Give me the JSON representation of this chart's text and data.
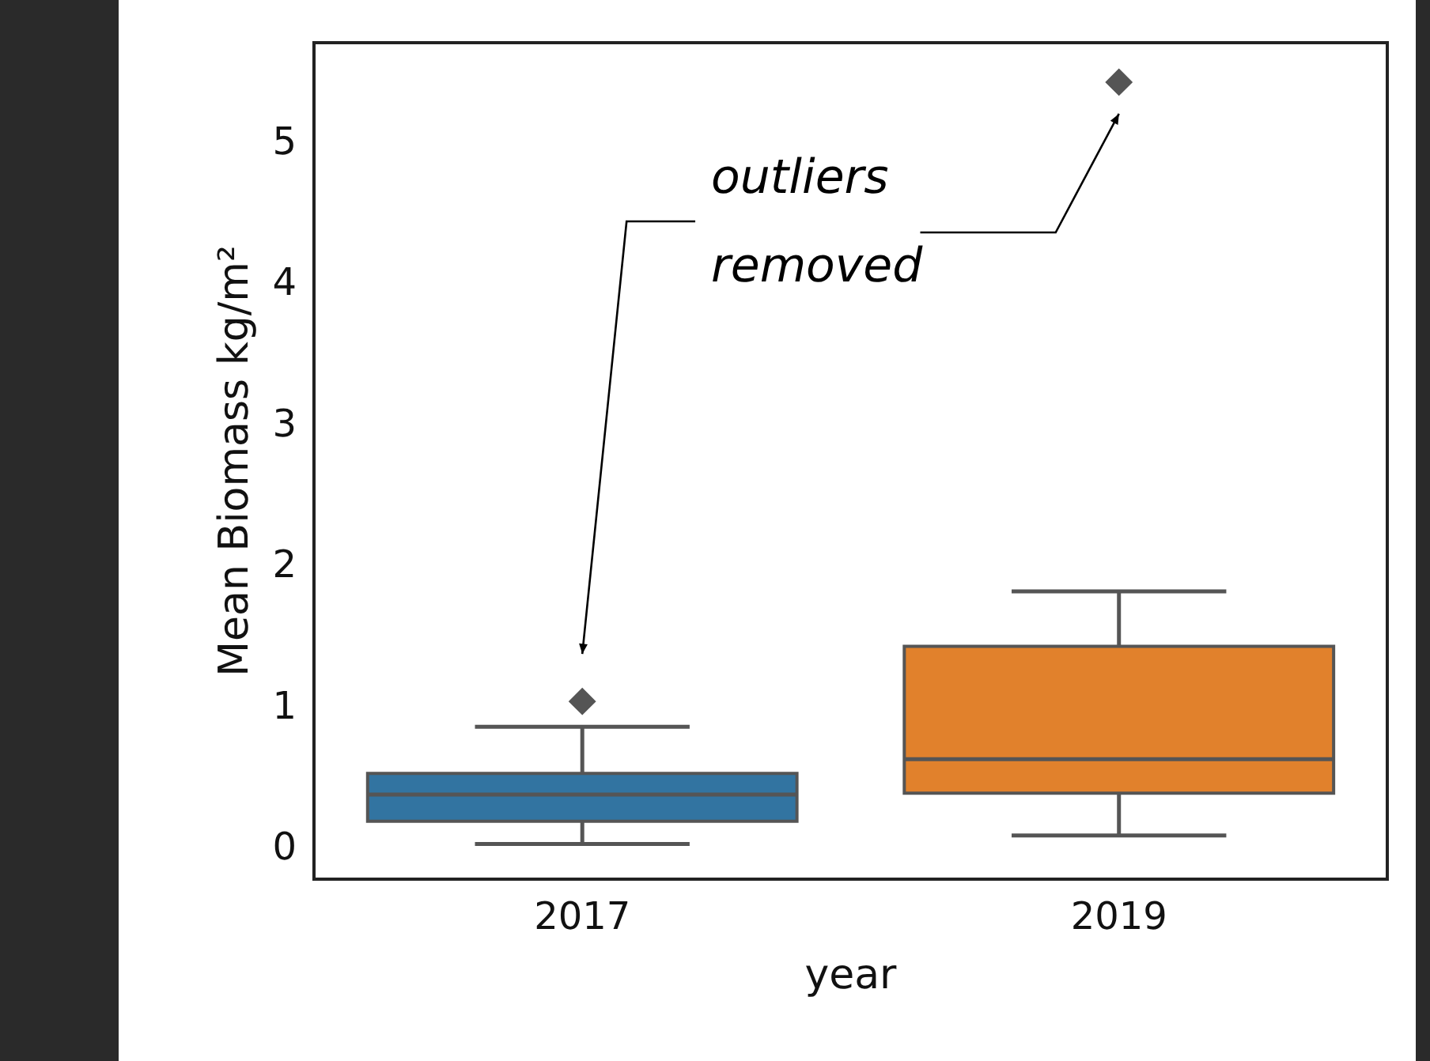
{
  "chart_data": {
    "type": "box",
    "xlabel": "year",
    "ylabel": "Mean Biomass kg/m²",
    "categories": [
      "2017",
      "2019"
    ],
    "boxes": [
      {
        "low": 0.04,
        "q1": 0.2,
        "median": 0.39,
        "q3": 0.54,
        "high": 0.87,
        "outliers": [
          1.05
        ]
      },
      {
        "low": 0.1,
        "q1": 0.4,
        "median": 0.64,
        "q3": 1.44,
        "high": 1.83,
        "outliers": [
          5.44
        ]
      }
    ],
    "colors": [
      "#3274a1",
      "#e1812c"
    ],
    "ylim": [
      -0.21,
      5.72
    ],
    "yticks": [
      0,
      1,
      2,
      3,
      4,
      5
    ],
    "grid": false,
    "legend": false,
    "marker": "diamond",
    "annotations": [
      "outliers removed"
    ]
  }
}
